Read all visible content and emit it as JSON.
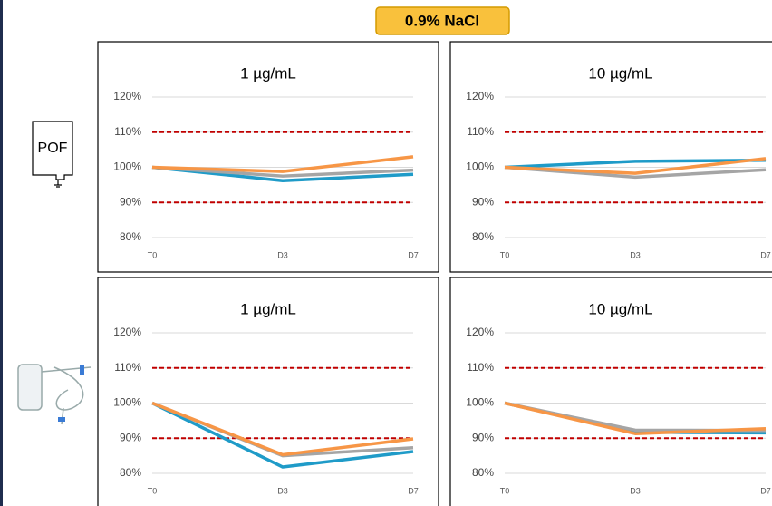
{
  "header": "0.9% NaCl",
  "row_labels": [
    "POF"
  ],
  "chart_data": [
    {
      "type": "line",
      "title": "1 µg/mL",
      "categories": [
        "T0",
        "D3",
        "D7"
      ],
      "ylim": [
        80,
        120
      ],
      "yticks": [
        {
          "value": 80,
          "label": "80%"
        },
        {
          "value": 90,
          "label": "90%"
        },
        {
          "value": 100,
          "label": "100%"
        },
        {
          "value": 110,
          "label": "110%"
        },
        {
          "value": 120,
          "label": "120%"
        }
      ],
      "grid": true,
      "ref_lines": [
        90,
        110
      ],
      "ref_color": "#c00000",
      "series": [
        {
          "color": "#1f9bc8",
          "values": [
            100,
            96.2,
            98
          ]
        },
        {
          "color": "#a5a5a5",
          "values": [
            100,
            97.5,
            99.2
          ]
        },
        {
          "color": "#f79646",
          "values": [
            100,
            98.8,
            103
          ]
        }
      ]
    },
    {
      "type": "line",
      "title": "10 µg/mL",
      "categories": [
        "T0",
        "D3",
        "D7"
      ],
      "ylim": [
        80,
        120
      ],
      "yticks": [
        {
          "value": 80,
          "label": "80%"
        },
        {
          "value": 90,
          "label": "90%"
        },
        {
          "value": 100,
          "label": "100%"
        },
        {
          "value": 110,
          "label": "110%"
        },
        {
          "value": 120,
          "label": "120%"
        }
      ],
      "grid": true,
      "ref_lines": [
        90,
        110
      ],
      "ref_color": "#c00000",
      "series": [
        {
          "color": "#1f9bc8",
          "values": [
            100,
            101.7,
            102
          ]
        },
        {
          "color": "#a5a5a5",
          "values": [
            100,
            97.2,
            99.3
          ]
        },
        {
          "color": "#f79646",
          "values": [
            100,
            98.3,
            102.5
          ]
        }
      ]
    },
    {
      "type": "line",
      "title": "1 µg/mL",
      "categories": [
        "T0",
        "D3",
        "D7"
      ],
      "ylim": [
        80,
        120
      ],
      "yticks": [
        {
          "value": 80,
          "label": "80%"
        },
        {
          "value": 90,
          "label": "90%"
        },
        {
          "value": 100,
          "label": "100%"
        },
        {
          "value": 110,
          "label": "110%"
        },
        {
          "value": 120,
          "label": "120%"
        }
      ],
      "grid": true,
      "ref_lines": [
        90,
        110
      ],
      "ref_color": "#c00000",
      "series": [
        {
          "color": "#1f9bc8",
          "values": [
            100,
            81.8,
            86.2
          ]
        },
        {
          "color": "#a5a5a5",
          "values": [
            100,
            85,
            87.3
          ]
        },
        {
          "color": "#f79646",
          "values": [
            100,
            85.3,
            89.8
          ]
        }
      ]
    },
    {
      "type": "line",
      "title": "10 µg/mL",
      "categories": [
        "T0",
        "D3",
        "D7"
      ],
      "ylim": [
        80,
        120
      ],
      "yticks": [
        {
          "value": 80,
          "label": "80%"
        },
        {
          "value": 90,
          "label": "90%"
        },
        {
          "value": 100,
          "label": "100%"
        },
        {
          "value": 110,
          "label": "110%"
        },
        {
          "value": 120,
          "label": "120%"
        }
      ],
      "grid": true,
      "ref_lines": [
        90,
        110
      ],
      "ref_color": "#c00000",
      "series": [
        {
          "color": "#1f9bc8",
          "values": [
            100,
            91.7,
            91.5
          ]
        },
        {
          "color": "#a5a5a5",
          "values": [
            100,
            92.3,
            92.2
          ]
        },
        {
          "color": "#f79646",
          "values": [
            100,
            91.3,
            92.7
          ]
        }
      ]
    }
  ]
}
